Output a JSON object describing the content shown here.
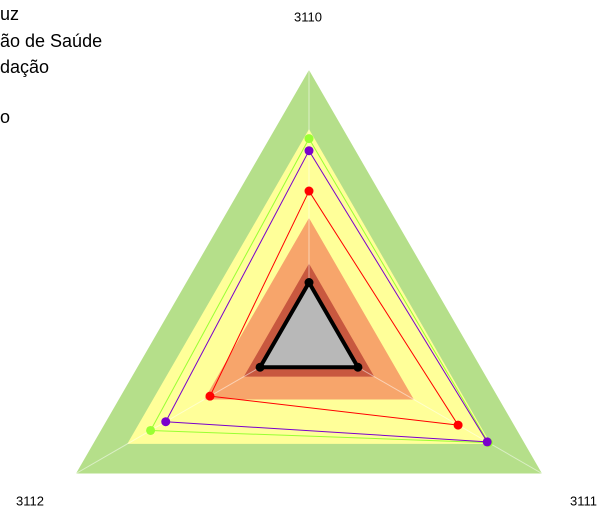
{
  "chart_data": {
    "type": "radar",
    "categories": [
      "3110",
      "3111",
      "3112"
    ],
    "rlim": [
      0,
      1
    ],
    "bands": [
      {
        "color": "#b5df8a",
        "value": 1
      },
      {
        "color": "#ffff99",
        "value": 0.78
      },
      {
        "color": "#f7a56b",
        "value": 0.45
      },
      {
        "color": "#c8583f",
        "value": 0.28
      }
    ],
    "series": [
      {
        "name": "uz",
        "color": "#99ff33",
        "values": [
          0.745,
          0.77,
          0.68
        ]
      },
      {
        "name": "ão de Saúde",
        "color": "#7a00cc",
        "values": [
          0.7,
          0.765,
          0.615
        ]
      },
      {
        "name": "dação",
        "color": "#ff0000",
        "values": [
          0.55,
          0.64,
          0.425
        ]
      },
      {
        "name": "o",
        "color": "#000000",
        "values": [
          0.21,
          0.21,
          0.21
        ],
        "fill": "#b8b8b8"
      }
    ]
  }
}
